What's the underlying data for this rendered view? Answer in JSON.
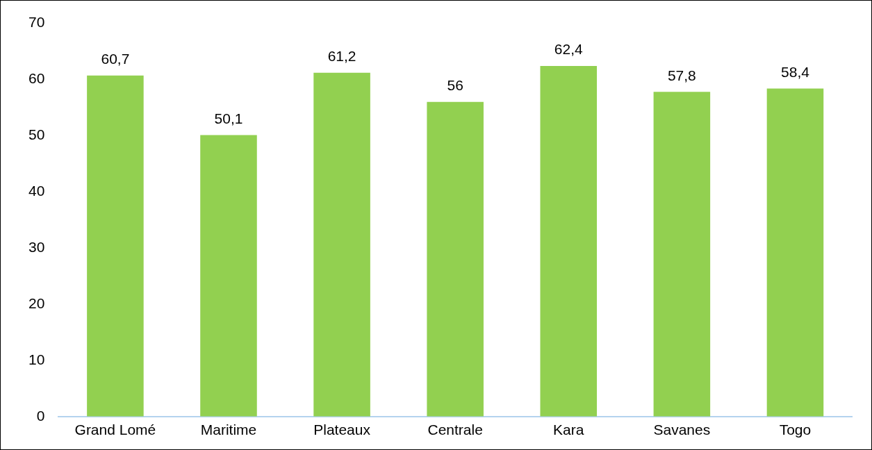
{
  "chart_data": {
    "type": "bar",
    "categories": [
      "Grand Lomé",
      "Maritime",
      "Plateaux",
      "Centrale",
      "Kara",
      "Savanes",
      "Togo"
    ],
    "values": [
      60.7,
      50.1,
      61.2,
      56,
      62.4,
      57.8,
      58.4
    ],
    "value_labels": [
      "60,7",
      "50,1",
      "61,2",
      "56",
      "62,4",
      "57,8",
      "58,4"
    ],
    "color": "#92d050",
    "ylim": [
      0,
      70
    ],
    "yticks": [
      0,
      10,
      20,
      30,
      40,
      50,
      60,
      70
    ],
    "grid": false,
    "legend": false
  }
}
